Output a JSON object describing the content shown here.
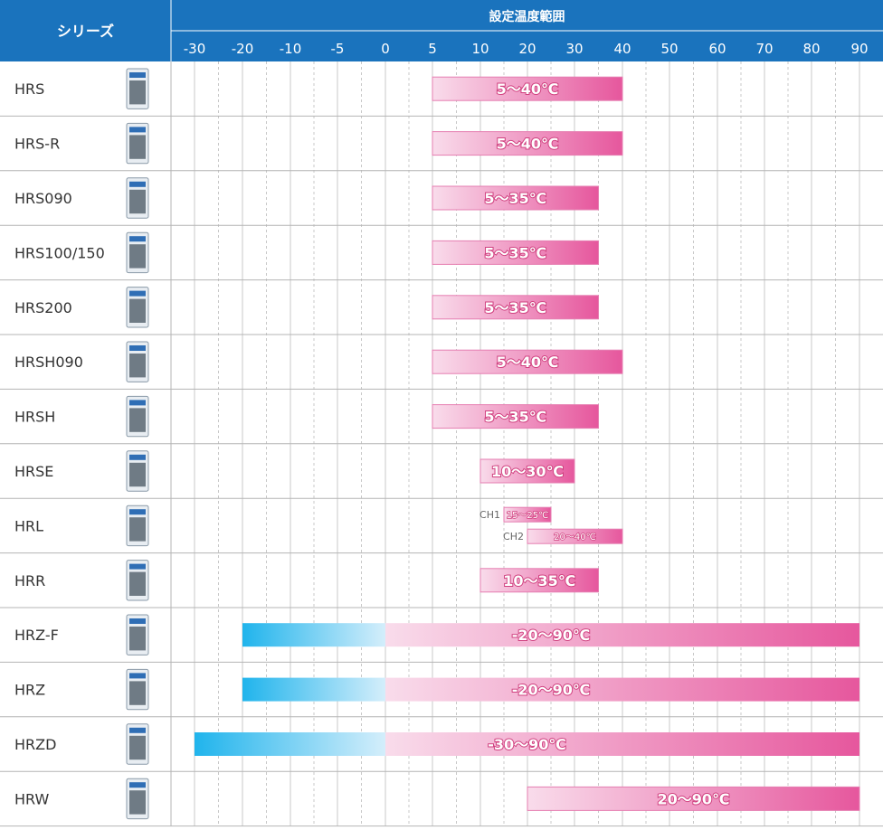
{
  "header": {
    "series_label": "シリーズ",
    "range_label": "設定温度範囲"
  },
  "colors": {
    "header_blue": "#1a73bd",
    "header_border": "#ffffff",
    "grid": "#c8c8c8",
    "row_border": "#b4b4b4",
    "pink_light": "#f9dceb",
    "pink_dark": "#e6579d",
    "pink_border": "#e57eb1",
    "blue_light": "#d4eefb",
    "blue_dark": "#20b4ec"
  },
  "chart_data": {
    "type": "bar",
    "orientation": "horizontal-range",
    "x_ticks": [
      -30,
      -20,
      -10,
      -5,
      0,
      5,
      10,
      20,
      30,
      40,
      50,
      60,
      70,
      80,
      90
    ],
    "x_tick_labels": [
      "-30",
      "-20",
      "-10",
      "-5",
      "0",
      "5",
      "10",
      "20",
      "30",
      "40",
      "50",
      "60",
      "70",
      "80",
      "90"
    ],
    "rows": [
      {
        "name": "HRS",
        "bars": [
          {
            "min": 5,
            "max": 40,
            "label": "5〜40℃"
          }
        ]
      },
      {
        "name": "HRS-R",
        "bars": [
          {
            "min": 5,
            "max": 40,
            "label": "5〜40℃"
          }
        ]
      },
      {
        "name": "HRS090",
        "bars": [
          {
            "min": 5,
            "max": 35,
            "label": "5〜35℃"
          }
        ]
      },
      {
        "name": "HRS100/150",
        "bars": [
          {
            "min": 5,
            "max": 35,
            "label": "5〜35℃"
          }
        ]
      },
      {
        "name": "HRS200",
        "bars": [
          {
            "min": 5,
            "max": 35,
            "label": "5〜35℃"
          }
        ]
      },
      {
        "name": "HRSH090",
        "bars": [
          {
            "min": 5,
            "max": 40,
            "label": "5〜40℃"
          }
        ]
      },
      {
        "name": "HRSH",
        "bars": [
          {
            "min": 5,
            "max": 35,
            "label": "5〜35℃"
          }
        ]
      },
      {
        "name": "HRSE",
        "bars": [
          {
            "min": 10,
            "max": 30,
            "label": "10〜30℃"
          }
        ]
      },
      {
        "name": "HRL",
        "bars": [
          {
            "min": 15,
            "max": 25,
            "label": "15〜25℃",
            "channel": "CH1"
          },
          {
            "min": 20,
            "max": 40,
            "label": "20〜40℃",
            "channel": "CH2"
          }
        ]
      },
      {
        "name": "HRR",
        "bars": [
          {
            "min": 10,
            "max": 35,
            "label": "10〜35℃"
          }
        ]
      },
      {
        "name": "HRZ-F",
        "bars": [
          {
            "min": -20,
            "max": 90,
            "label": "-20〜90℃"
          }
        ]
      },
      {
        "name": "HRZ",
        "bars": [
          {
            "min": -20,
            "max": 90,
            "label": "-20〜90℃"
          }
        ]
      },
      {
        "name": "HRZD",
        "bars": [
          {
            "min": -30,
            "max": 90,
            "label": "-30〜90℃"
          }
        ]
      },
      {
        "name": "HRW",
        "bars": [
          {
            "min": 20,
            "max": 90,
            "label": "20〜90℃"
          }
        ]
      }
    ]
  }
}
